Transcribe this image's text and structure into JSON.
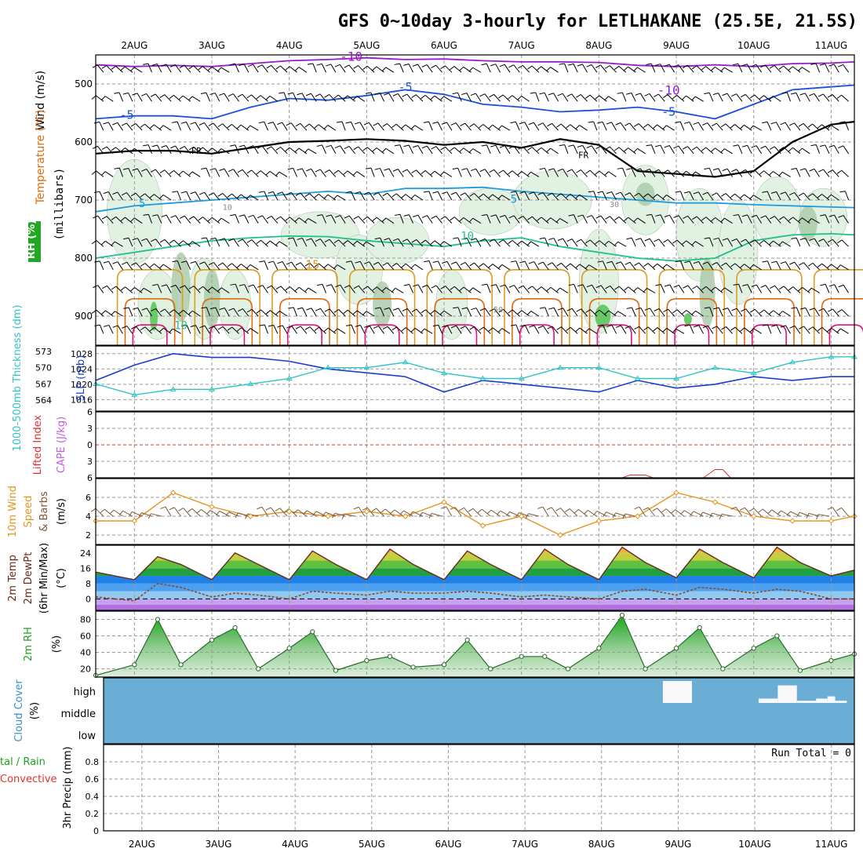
{
  "title": "GFS 0~10day 3-hourly for LETLHAKANE (25.5E, 21.5S)",
  "colors": {
    "frame": "#000000",
    "grid": "#9a9a9a",
    "wind_barb": "#000000",
    "temp_neg10": "#9a1ac8",
    "temp_neg5": "#1c50d8",
    "freezing": "#000000",
    "temp_5": "#1e9be0",
    "temp_10": "#1ec08a",
    "temp_15": "#e09a1e",
    "temp_20": "#e06a10",
    "temp_25": "#e0107a",
    "rh_light": "#e2f2e2",
    "rh_mid": "#a8c8a8",
    "rh_dark": "#6e8e6e",
    "rh_green": "#66cc66",
    "slp": "#1c3cd0",
    "thickness": "#2ec4c4",
    "lifted_index": "#d83030",
    "cape": "#c060e0",
    "wind10m": "#e69520",
    "barb10m": "#7a5a3a",
    "temp2m_dew": "#8a4a2a",
    "rh2m": "#20a020",
    "cloud": "#6aaed6",
    "precip_label": "#e03030"
  },
  "time_axis": {
    "labels": [
      "2AUG",
      "3AUG",
      "4AUG",
      "5AUG",
      "6AUG",
      "7AUG",
      "8AUG",
      "9AUG",
      "10AUG",
      "11AUG"
    ]
  },
  "panels": {
    "upper": {
      "ylabel_wind": "Wind (m/s)",
      "ylabel_temp": "Temperature (°C)",
      "ylabel_rh": "RH (%)",
      "ylabel_pressure": "(millibars)",
      "contour_labels": [
        "-10",
        "-5",
        "FR",
        "5",
        "10",
        "15",
        "10",
        "30",
        "50"
      ]
    },
    "slp": {
      "ylabel_thick": "1000-500mb Thickness (dm)",
      "ylabel_slp": "SLP (mb)"
    },
    "lifted": {
      "ylabel_li": "Lifted Index",
      "ylabel_cape": "CAPE (J/kg)"
    },
    "wind10m": {
      "ylabel_a": "10m Wind",
      "ylabel_b": "Speed",
      "ylabel_c": "& Barbs",
      "ylabel_unit": "(m/s)"
    },
    "temp2m": {
      "ylabel_a": "2m Temp",
      "ylabel_b": "2m DewPt",
      "ylabel_c": "(6hr Min/Max)",
      "ylabel_unit": "(°C)"
    },
    "rh2m": {
      "ylabel": "2m RH",
      "ylabel_unit": "(%)"
    },
    "cloud": {
      "ylabel": "Cloud Cover",
      "ylabel_unit": "(%)",
      "levels": [
        "high",
        "middle",
        "low"
      ]
    },
    "precip": {
      "ylabel_total": "tal / Rain",
      "ylabel_conv": "Convective",
      "ylabel": "3hr Precip (mm)",
      "run_total": "Run Total = 0"
    }
  },
  "chart_data": [
    {
      "type": "line",
      "panel": "upper-air temperature contours",
      "yaxis": "pressure (mb)",
      "ylim": [
        450,
        950
      ],
      "yticks": [
        500,
        600,
        700,
        800,
        900
      ],
      "x_days": [
        1.5,
        2,
        2.5,
        3,
        3.5,
        4,
        4.5,
        5,
        5.5,
        6,
        6.5,
        7,
        7.5,
        8,
        8.5,
        9,
        9.5,
        10,
        10.5,
        11,
        11.3
      ],
      "series": [
        {
          "name": "-10",
          "values": [
            467,
            470,
            468,
            470,
            465,
            460,
            458,
            455,
            458,
            457,
            460,
            462,
            462,
            463,
            468,
            470,
            467,
            470,
            465,
            464,
            462
          ]
        },
        {
          "name": "-5",
          "values": [
            560,
            555,
            555,
            560,
            540,
            525,
            528,
            520,
            510,
            518,
            535,
            540,
            548,
            545,
            540,
            548,
            560,
            535,
            510,
            505,
            502
          ]
        },
        {
          "name": "FR",
          "values": [
            620,
            615,
            615,
            620,
            610,
            600,
            598,
            595,
            598,
            605,
            600,
            610,
            595,
            605,
            650,
            655,
            660,
            650,
            600,
            570,
            565
          ]
        },
        {
          "name": "5",
          "values": [
            720,
            710,
            705,
            700,
            695,
            690,
            685,
            690,
            680,
            680,
            678,
            685,
            690,
            695,
            700,
            705,
            705,
            708,
            710,
            712,
            713
          ]
        },
        {
          "name": "10",
          "values": [
            800,
            790,
            780,
            770,
            765,
            762,
            763,
            770,
            775,
            780,
            770,
            765,
            780,
            790,
            800,
            805,
            800,
            770,
            760,
            758,
            760
          ]
        }
      ]
    },
    {
      "type": "line",
      "panel": "SLP and 1000-500mb thickness",
      "x_days": [
        1.5,
        2,
        2.5,
        3,
        3.5,
        4,
        4.5,
        5,
        5.5,
        6,
        6.5,
        7,
        7.5,
        8,
        8.5,
        9,
        9.5,
        10,
        10.5,
        11,
        11.3
      ],
      "slp_ylim": [
        1013,
        1030
      ],
      "slp_yticks": [
        1016,
        1020,
        1024,
        1028
      ],
      "thick_yticks": [
        564,
        567,
        570,
        573
      ],
      "series": [
        {
          "name": "SLP (mb)",
          "values": [
            1021,
            1025,
            1028,
            1027,
            1027,
            1026,
            1024,
            1023,
            1022,
            1018,
            1021,
            1020,
            1019,
            1018,
            1021,
            1019,
            1020,
            1022,
            1021,
            1022,
            1022
          ]
        },
        {
          "name": "1000-500mb Thickness (dm)",
          "values": [
            567,
            565,
            566,
            566,
            567,
            568,
            570,
            570,
            571,
            569,
            568,
            568,
            570,
            570,
            568,
            568,
            570,
            569,
            571,
            572,
            572
          ]
        }
      ]
    },
    {
      "type": "line",
      "panel": "Lifted Index and CAPE",
      "ylim": [
        6,
        -6
      ],
      "yticks": [
        -6,
        -3,
        0,
        3,
        6
      ],
      "x_days": [
        2.5,
        8.4,
        8.6,
        9.5,
        9.6
      ],
      "series": [
        {
          "name": "Lifted Index",
          "values": [
            6,
            5.5,
            5.5,
            4.5,
            4.5
          ]
        }
      ]
    },
    {
      "type": "line",
      "panel": "10m Wind Speed",
      "ylim": [
        1,
        8
      ],
      "yticks": [
        2,
        4,
        6
      ],
      "x_days": [
        1.5,
        2,
        2.5,
        3,
        3.5,
        4,
        4.5,
        5,
        5.5,
        6,
        6.5,
        7,
        7.5,
        8,
        8.5,
        9,
        9.5,
        10,
        10.5,
        11,
        11.3
      ],
      "series": [
        {
          "name": "10m Wind Speed",
          "values": [
            3.5,
            3.5,
            6.5,
            5,
            4,
            4.5,
            4,
            4.5,
            4,
            5.5,
            3,
            4,
            2,
            3.5,
            4,
            6.5,
            5.5,
            4,
            3.5,
            3.5,
            4
          ]
        }
      ]
    },
    {
      "type": "area",
      "panel": "2m Temp, 2m DewPt",
      "ylim": [
        -6,
        28
      ],
      "yticks": [
        0,
        8,
        16,
        24
      ],
      "x_days": [
        1.5,
        2,
        2.3,
        2.6,
        3,
        3.3,
        3.6,
        4,
        4.3,
        4.6,
        5,
        5.3,
        5.6,
        6,
        6.3,
        6.6,
        7,
        7.3,
        7.6,
        8,
        8.3,
        8.6,
        9,
        9.3,
        9.6,
        10,
        10.3,
        10.6,
        11,
        11.3
      ],
      "series": [
        {
          "name": "2m Temp",
          "values": [
            14,
            10,
            22,
            18,
            10,
            24,
            18,
            10,
            25,
            18,
            10,
            26,
            18,
            10,
            25,
            18,
            10,
            26,
            18,
            10,
            27,
            19,
            11,
            26,
            19,
            11,
            27,
            19,
            12,
            15
          ]
        },
        {
          "name": "2m DewPt",
          "values": [
            1,
            -1,
            8,
            6,
            1,
            3,
            2,
            0,
            4,
            3,
            2,
            4,
            3,
            3,
            4,
            3,
            1,
            2,
            1,
            0,
            4,
            5,
            2,
            6,
            5,
            3,
            5,
            4,
            0,
            0
          ]
        }
      ]
    },
    {
      "type": "area",
      "panel": "2m RH",
      "ylim": [
        10,
        90
      ],
      "yticks": [
        20,
        40,
        60,
        80
      ],
      "x_days": [
        1.5,
        2,
        2.3,
        2.6,
        3,
        3.3,
        3.6,
        4,
        4.3,
        4.6,
        5,
        5.3,
        5.6,
        6,
        6.3,
        6.6,
        7,
        7.3,
        7.6,
        8,
        8.3,
        8.6,
        9,
        9.3,
        9.6,
        10,
        10.3,
        10.6,
        11,
        11.3
      ],
      "series": [
        {
          "name": "2m RH",
          "values": [
            12,
            25,
            80,
            25,
            55,
            70,
            20,
            45,
            65,
            18,
            30,
            35,
            22,
            25,
            55,
            20,
            35,
            35,
            20,
            45,
            85,
            20,
            45,
            70,
            20,
            45,
            60,
            18,
            30,
            38
          ]
        }
      ]
    },
    {
      "type": "area",
      "panel": "Cloud Cover",
      "ylim": [
        0,
        100
      ],
      "x_days": [
        8.8,
        9.2,
        10.05,
        10.3,
        10.5,
        10.6,
        10.8,
        11.0
      ],
      "series": [
        {
          "name": "high",
          "values": [
            100,
            0,
            20,
            80,
            0,
            10,
            20,
            0
          ]
        }
      ]
    },
    {
      "type": "bar",
      "panel": "3hr Precip",
      "ylim": [
        0,
        1
      ],
      "yticks": [
        0,
        0.2,
        0.4,
        0.6,
        0.8
      ],
      "x_days": [],
      "values": []
    }
  ]
}
